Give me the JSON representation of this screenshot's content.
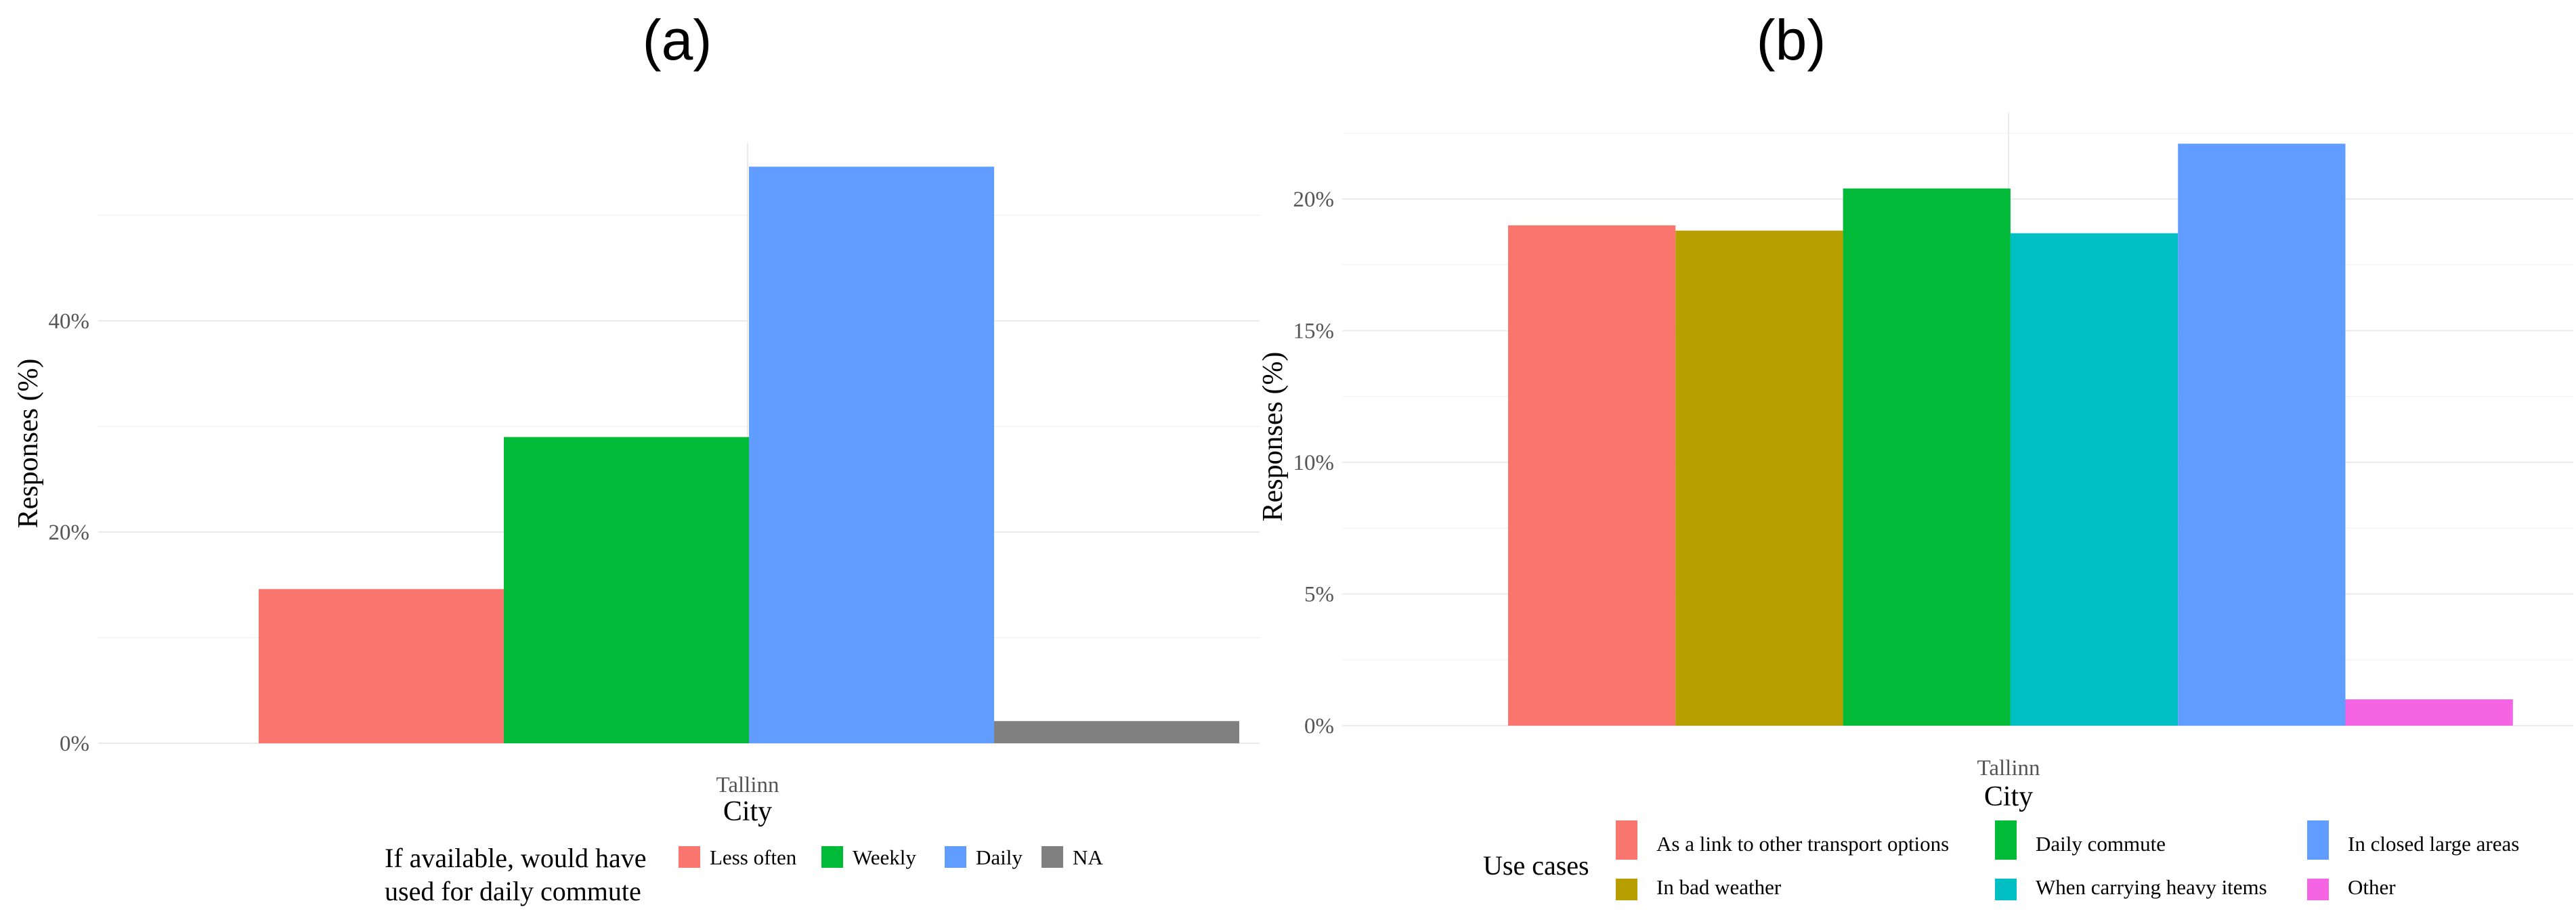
{
  "chart_data": [
    {
      "type": "bar",
      "title": "(a)",
      "xlabel": "City",
      "ylabel": "Responses (%)",
      "categories": [
        "Tallinn"
      ],
      "ylim": [
        0,
        55
      ],
      "yticks": [
        "0%",
        "20%",
        "40%"
      ],
      "grid": true,
      "legend_title": "If available, would have used for daily commute",
      "legend_title_lines": [
        "If available, would have",
        "used for daily commute"
      ],
      "legend_position": "bottom",
      "series": [
        {
          "name": "Less often",
          "values": [
            14.6
          ],
          "color": "#F8766D"
        },
        {
          "name": "Weekly",
          "values": [
            29.0
          ],
          "color": "#00BA38"
        },
        {
          "name": "Daily",
          "values": [
            54.6
          ],
          "color": "#619CFF"
        },
        {
          "name": "NA",
          "values": [
            2.1
          ],
          "color": "#808080"
        }
      ]
    },
    {
      "type": "bar",
      "title": "(b)",
      "xlabel": "City",
      "ylabel": "Responses (%)",
      "categories": [
        "Tallinn"
      ],
      "ylim": [
        0,
        22.5
      ],
      "yticks": [
        "0%",
        "5%",
        "10%",
        "15%",
        "20%"
      ],
      "grid": true,
      "legend_title": "Use cases",
      "legend_position": "bottom",
      "series": [
        {
          "name": "As a link to other transport options",
          "values": [
            19.0
          ],
          "color": "#F8766D"
        },
        {
          "name": "In bad weather",
          "values": [
            18.8
          ],
          "color": "#B79F00"
        },
        {
          "name": "Daily commute",
          "values": [
            20.4
          ],
          "color": "#00BA38"
        },
        {
          "name": "When carrying heavy items",
          "values": [
            18.7
          ],
          "color": "#00BFC4"
        },
        {
          "name": "In closed large areas",
          "values": [
            22.1
          ],
          "color": "#619CFF"
        },
        {
          "name": "Other",
          "values": [
            1.0
          ],
          "color": "#F564E3"
        }
      ]
    }
  ]
}
